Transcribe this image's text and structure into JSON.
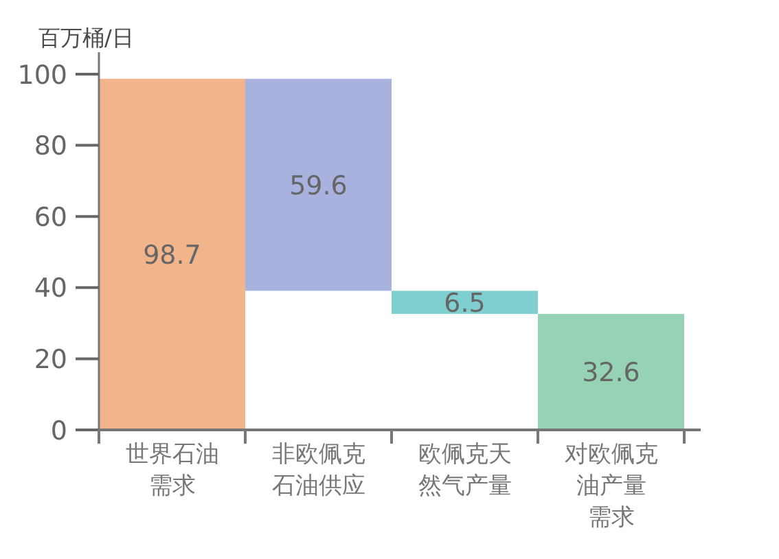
{
  "chart_data": {
    "type": "bar",
    "ylabel": "百万桶/日",
    "categories": [
      "世界石油需求",
      "非欧佩克石油供应",
      "欧佩克天然气产量",
      "对欧佩克油产量需求"
    ],
    "values": [
      98.7,
      59.6,
      6.5,
      32.6
    ],
    "base": [
      0,
      39.1,
      32.6,
      0
    ],
    "colors": [
      "#f2b48a",
      "#a9b2df",
      "#7fcfd0",
      "#96d3b4"
    ],
    "ylim": [
      0,
      100
    ],
    "yticks": [
      0,
      20,
      40,
      60,
      80,
      100
    ],
    "data_labels": true
  }
}
